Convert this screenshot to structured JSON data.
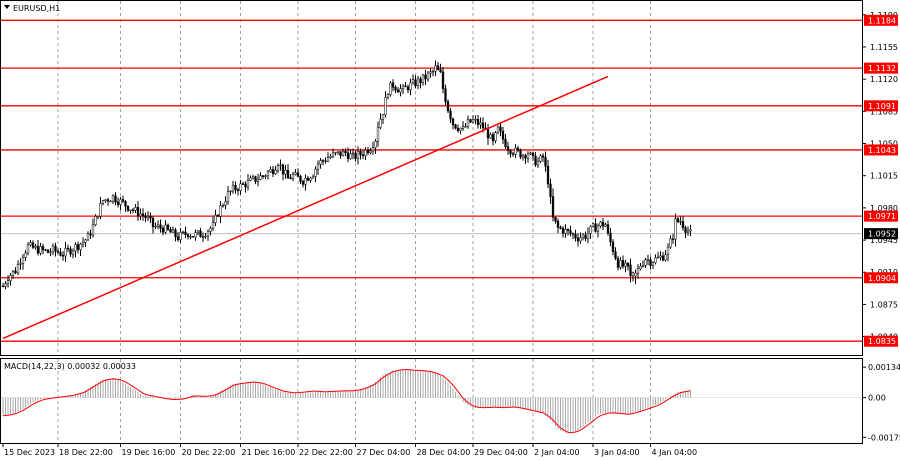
{
  "chart_data": [
    {
      "type": "candlestick",
      "title": "EURUSD,H1",
      "ylim": [
        1.082,
        1.1205
      ],
      "price_ticks": [
        "1.1190",
        "1.1155",
        "1.1120",
        "1.1085",
        "1.1050",
        "1.1015",
        "1.0980",
        "1.0945",
        "1.0910",
        "1.0875",
        "1.0840"
      ],
      "levels": [
        {
          "value": 1.1184,
          "label": "1.1184"
        },
        {
          "value": 1.1132,
          "label": "1.1132"
        },
        {
          "value": 1.1091,
          "label": "1.1091"
        },
        {
          "value": 1.1043,
          "label": "1.1043"
        },
        {
          "value": 1.0971,
          "label": "1.0971"
        },
        {
          "value": 1.0904,
          "label": "1.0904"
        },
        {
          "value": 1.0835,
          "label": "1.0835"
        }
      ],
      "current_price": {
        "value": 1.0952,
        "label": "1.0952"
      },
      "trendline": {
        "from": {
          "bar": 0,
          "price": 1.0838
        },
        "to": {
          "bar": 242,
          "price": 1.1123
        }
      },
      "time_labels": [
        {
          "bar": 0,
          "label": "15 Dec 2023"
        },
        {
          "bar": 22,
          "label": "18 Dec 22:00"
        },
        {
          "bar": 47,
          "label": "19 Dec 16:00"
        },
        {
          "bar": 71,
          "label": "20 Dec 22:00"
        },
        {
          "bar": 95,
          "label": "21 Dec 16:00"
        },
        {
          "bar": 118,
          "label": "22 Dec 22:00"
        },
        {
          "bar": 141,
          "label": "27 Dec 04:00"
        },
        {
          "bar": 165,
          "label": "28 Dec 04:00"
        },
        {
          "bar": 188,
          "label": "29 Dec 04:00"
        },
        {
          "bar": 212,
          "label": "2 Jan 04:00"
        },
        {
          "bar": 236,
          "label": "3 Jan 04:00"
        },
        {
          "bar": 259,
          "label": "4 Jan 04:00"
        }
      ],
      "bar_count": 275,
      "anchors": [
        [
          0,
          1.0895
        ],
        [
          2,
          1.0905
        ],
        [
          5,
          1.0912
        ],
        [
          8,
          1.093
        ],
        [
          10,
          1.0938
        ],
        [
          14,
          1.0935
        ],
        [
          18,
          1.0932
        ],
        [
          20,
          1.0934
        ],
        [
          24,
          1.093
        ],
        [
          28,
          1.0936
        ],
        [
          32,
          1.0943
        ],
        [
          34,
          1.0948
        ],
        [
          36,
          1.096
        ],
        [
          38,
          1.0975
        ],
        [
          40,
          1.0988
        ],
        [
          44,
          1.0992
        ],
        [
          48,
          1.0985
        ],
        [
          52,
          1.0978
        ],
        [
          56,
          1.0972
        ],
        [
          58,
          1.0968
        ],
        [
          60,
          1.096
        ],
        [
          64,
          1.0958
        ],
        [
          66,
          1.0955
        ],
        [
          70,
          1.0948
        ],
        [
          74,
          1.0953
        ],
        [
          76,
          1.095
        ],
        [
          80,
          1.0952
        ],
        [
          84,
          1.096
        ],
        [
          86,
          1.0975
        ],
        [
          88,
          1.0985
        ],
        [
          90,
          1.0995
        ],
        [
          92,
          1.1
        ],
        [
          96,
          1.1005
        ],
        [
          100,
          1.101
        ],
        [
          104,
          1.1015
        ],
        [
          108,
          1.1022
        ],
        [
          110,
          1.103
        ],
        [
          112,
          1.102
        ],
        [
          114,
          1.1012
        ],
        [
          116,
          1.1015
        ],
        [
          120,
          1.101
        ],
        [
          124,
          1.1018
        ],
        [
          126,
          1.1028
        ],
        [
          130,
          1.1035
        ],
        [
          133,
          1.1038
        ],
        [
          137,
          1.104
        ],
        [
          140,
          1.1035
        ],
        [
          144,
          1.104
        ],
        [
          147,
          1.1046
        ],
        [
          149,
          1.1055
        ],
        [
          150,
          1.107
        ],
        [
          152,
          1.1085
        ],
        [
          154,
          1.1108
        ],
        [
          156,
          1.1114
        ],
        [
          158,
          1.111
        ],
        [
          160,
          1.1108
        ],
        [
          162,
          1.1112
        ],
        [
          165,
          1.1116
        ],
        [
          168,
          1.112
        ],
        [
          170,
          1.1124
        ],
        [
          172,
          1.1128
        ],
        [
          173,
          1.1132
        ],
        [
          175,
          1.1125
        ],
        [
          176,
          1.111
        ],
        [
          178,
          1.1088
        ],
        [
          180,
          1.1072
        ],
        [
          182,
          1.1068
        ],
        [
          184,
          1.1065
        ],
        [
          186,
          1.1072
        ],
        [
          188,
          1.1075
        ],
        [
          190,
          1.1072
        ],
        [
          192,
          1.1068
        ],
        [
          194,
          1.106
        ],
        [
          196,
          1.105
        ],
        [
          198,
          1.1065
        ],
        [
          200,
          1.1055
        ],
        [
          202,
          1.1046
        ],
        [
          204,
          1.1042
        ],
        [
          206,
          1.104
        ],
        [
          208,
          1.1038
        ],
        [
          210,
          1.104
        ],
        [
          212,
          1.1032
        ],
        [
          214,
          1.103
        ],
        [
          216,
          1.1035
        ],
        [
          218,
          1.101
        ],
        [
          219,
          1.0988
        ],
        [
          220,
          1.0968
        ],
        [
          222,
          1.0958
        ],
        [
          224,
          1.0956
        ],
        [
          227,
          1.0952
        ],
        [
          230,
          1.0948
        ],
        [
          233,
          1.095
        ],
        [
          236,
          1.0958
        ],
        [
          239,
          1.0962
        ],
        [
          241,
          1.0962
        ],
        [
          242,
          1.095
        ],
        [
          244,
          1.0935
        ],
        [
          246,
          1.092
        ],
        [
          249,
          1.0915
        ],
        [
          251,
          1.091
        ],
        [
          253,
          1.0906
        ],
        [
          255,
          1.0918
        ],
        [
          257,
          1.0925
        ],
        [
          259,
          1.0922
        ],
        [
          262,
          1.0925
        ],
        [
          264,
          1.0928
        ],
        [
          266,
          1.0935
        ],
        [
          268,
          1.095
        ],
        [
          269,
          1.0965
        ],
        [
          271,
          1.0966
        ],
        [
          273,
          1.0958
        ],
        [
          275,
          1.0952
        ]
      ],
      "special_bars": [
        [
          251,
          1.0918,
          1.0906,
          1.0925,
          1.0899
        ],
        [
          253,
          1.0906,
          1.0909,
          1.0913,
          1.0897
        ]
      ]
    },
    {
      "type": "bar",
      "title": "MACD(14,22,3) 0.00032 0.00033",
      "ylim": [
        -0.002,
        0.0017
      ],
      "ticks": [
        "0.00134",
        "0.00",
        "-0.00175"
      ],
      "tick_values": [
        0.00134,
        0.0,
        -0.00175
      ],
      "anchors": [
        [
          0,
          -0.0008
        ],
        [
          4,
          -0.00072
        ],
        [
          8,
          -0.0005
        ],
        [
          12,
          -0.0002
        ],
        [
          16,
          -5e-05
        ],
        [
          20,
          0.0
        ],
        [
          24,
          5e-05
        ],
        [
          28,
          0.00012
        ],
        [
          32,
          0.00025
        ],
        [
          36,
          0.00055
        ],
        [
          40,
          0.0008
        ],
        [
          44,
          0.00085
        ],
        [
          48,
          0.0007
        ],
        [
          52,
          0.0004
        ],
        [
          56,
          0.0001
        ],
        [
          60,
          5e-05
        ],
        [
          64,
          -5e-05
        ],
        [
          68,
          -0.0001
        ],
        [
          72,
          -5e-05
        ],
        [
          76,
          0.0001
        ],
        [
          80,
          5e-05
        ],
        [
          84,
          0.0001
        ],
        [
          88,
          0.00035
        ],
        [
          92,
          0.0006
        ],
        [
          96,
          0.00065
        ],
        [
          100,
          0.0007
        ],
        [
          104,
          0.0006
        ],
        [
          108,
          0.0004
        ],
        [
          112,
          0.00025
        ],
        [
          116,
          0.0002
        ],
        [
          120,
          0.00025
        ],
        [
          124,
          0.0003
        ],
        [
          128,
          0.00025
        ],
        [
          132,
          0.00028
        ],
        [
          136,
          0.0003
        ],
        [
          140,
          0.0003
        ],
        [
          144,
          0.0004
        ],
        [
          148,
          0.0006
        ],
        [
          152,
          0.001
        ],
        [
          156,
          0.0012
        ],
        [
          160,
          0.00125
        ],
        [
          164,
          0.0012
        ],
        [
          168,
          0.00118
        ],
        [
          172,
          0.0011
        ],
        [
          176,
          0.0009
        ],
        [
          180,
          0.0004
        ],
        [
          184,
          -0.0002
        ],
        [
          188,
          -0.00045
        ],
        [
          192,
          -0.00045
        ],
        [
          196,
          -0.00042
        ],
        [
          200,
          -0.00045
        ],
        [
          204,
          -0.0004
        ],
        [
          208,
          -0.0005
        ],
        [
          212,
          -0.0006
        ],
        [
          216,
          -0.0007
        ],
        [
          220,
          -0.0011
        ],
        [
          222,
          -0.0014
        ],
        [
          226,
          -0.0016
        ],
        [
          230,
          -0.00145
        ],
        [
          234,
          -0.0011
        ],
        [
          238,
          -0.00075
        ],
        [
          242,
          -0.00065
        ],
        [
          246,
          -0.0007
        ],
        [
          250,
          -0.00075
        ],
        [
          254,
          -0.0006
        ],
        [
          258,
          -0.00045
        ],
        [
          262,
          -0.0003
        ],
        [
          266,
          0.0
        ],
        [
          270,
          0.00025
        ],
        [
          275,
          0.00032
        ]
      ]
    }
  ],
  "colors": {
    "bull": "#ffffff",
    "bear": "#000000",
    "candle_outline": "#000000",
    "level_line": "#ff0000",
    "level_label_bg": "#ff0000",
    "trendline": "#ff0000",
    "grid": "#8a8a8a",
    "current_price_line": "#c0c0c0",
    "current_price_bg": "#000000",
    "macd_hist": "#a8a8a8",
    "macd_signal": "#ff0000"
  },
  "icons": {
    "title_marker": "triangle-down-icon"
  }
}
